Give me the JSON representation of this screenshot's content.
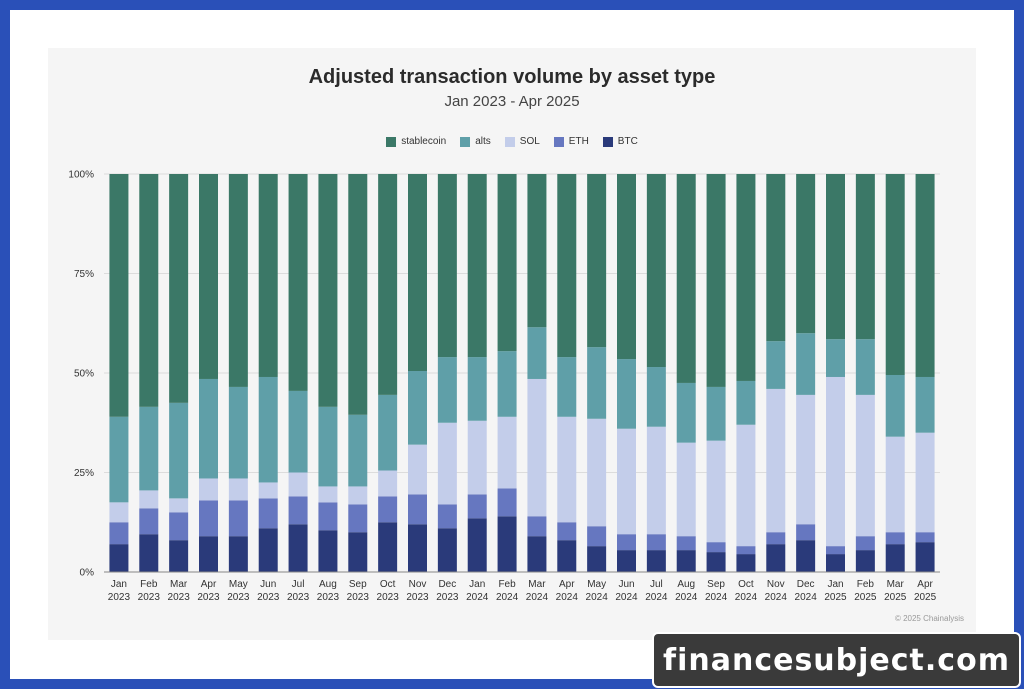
{
  "chart_data": {
    "type": "bar",
    "stacked": true,
    "normalized": true,
    "title": "Adjusted transaction volume by asset type",
    "subtitle": "Jan 2023 - Apr 2025",
    "ylim": [
      0,
      100
    ],
    "y_ticks": [
      "0%",
      "25%",
      "50%",
      "75%",
      "100%"
    ],
    "legend_position": "top-center",
    "grid": true,
    "categories": [
      [
        "Jan",
        "2023"
      ],
      [
        "Feb",
        "2023"
      ],
      [
        "Mar",
        "2023"
      ],
      [
        "Apr",
        "2023"
      ],
      [
        "May",
        "2023"
      ],
      [
        "Jun",
        "2023"
      ],
      [
        "Jul",
        "2023"
      ],
      [
        "Aug",
        "2023"
      ],
      [
        "Sep",
        "2023"
      ],
      [
        "Oct",
        "2023"
      ],
      [
        "Nov",
        "2023"
      ],
      [
        "Dec",
        "2023"
      ],
      [
        "Jan",
        "2024"
      ],
      [
        "Feb",
        "2024"
      ],
      [
        "Mar",
        "2024"
      ],
      [
        "Apr",
        "2024"
      ],
      [
        "May",
        "2024"
      ],
      [
        "Jun",
        "2024"
      ],
      [
        "Jul",
        "2024"
      ],
      [
        "Aug",
        "2024"
      ],
      [
        "Sep",
        "2024"
      ],
      [
        "Oct",
        "2024"
      ],
      [
        "Nov",
        "2024"
      ],
      [
        "Dec",
        "2024"
      ],
      [
        "Jan",
        "2025"
      ],
      [
        "Feb",
        "2025"
      ],
      [
        "Mar",
        "2025"
      ],
      [
        "Apr",
        "2025"
      ]
    ],
    "series": [
      {
        "name": "BTC",
        "color": "#2a3a7a",
        "values": [
          7,
          9.5,
          8,
          9,
          9,
          11,
          12,
          10.5,
          10,
          12.5,
          12,
          11,
          13.5,
          14,
          9,
          8,
          6.5,
          5.5,
          5.5,
          5.5,
          5,
          4.5,
          7,
          8,
          4.5,
          5.5,
          7,
          7.5
        ]
      },
      {
        "name": "ETH",
        "color": "#6677c0",
        "values": [
          5.5,
          6.5,
          7,
          9,
          9,
          7.5,
          7,
          7,
          7,
          6.5,
          7.5,
          6,
          6,
          7,
          5,
          4.5,
          5,
          4,
          4,
          3.5,
          2.5,
          2,
          3,
          4,
          2,
          3.5,
          3,
          2.5
        ]
      },
      {
        "name": "SOL",
        "color": "#c3cdea",
        "values": [
          5,
          4.5,
          3.5,
          5.5,
          5.5,
          4,
          6,
          4,
          4.5,
          6.5,
          12.5,
          20.5,
          18.5,
          18,
          34.5,
          26.5,
          27,
          26.5,
          27,
          23.5,
          25.5,
          30.5,
          36,
          32.5,
          42.5,
          35.5,
          24,
          25
        ]
      },
      {
        "name": "alts",
        "color": "#5f9fa8",
        "values": [
          21.5,
          21,
          24,
          25,
          23,
          26.5,
          20.5,
          20,
          18,
          19,
          18.5,
          16.5,
          16,
          16.5,
          13,
          15,
          18,
          17.5,
          15,
          15,
          13.5,
          11,
          12,
          15.5,
          9.5,
          14,
          15.5,
          14
        ]
      },
      {
        "name": "stablecoin",
        "color": "#3b7867",
        "values": [
          61,
          58.5,
          57.5,
          51.5,
          53.5,
          51,
          54.5,
          58.5,
          60.5,
          55.5,
          49.5,
          46,
          46,
          44.5,
          38.5,
          46,
          43.5,
          46.5,
          48.5,
          52.5,
          53.5,
          52,
          42,
          40,
          41.5,
          41.5,
          50.5,
          51
        ]
      }
    ]
  },
  "legend": {
    "items": [
      {
        "label": "stablecoin",
        "color": "#3b7867"
      },
      {
        "label": "alts",
        "color": "#5f9fa8"
      },
      {
        "label": "SOL",
        "color": "#c3cdea"
      },
      {
        "label": "ETH",
        "color": "#6677c0"
      },
      {
        "label": "BTC",
        "color": "#2a3a7a"
      }
    ]
  },
  "credit": "© 2025 Chainalysis",
  "watermark": "financesubject.com"
}
